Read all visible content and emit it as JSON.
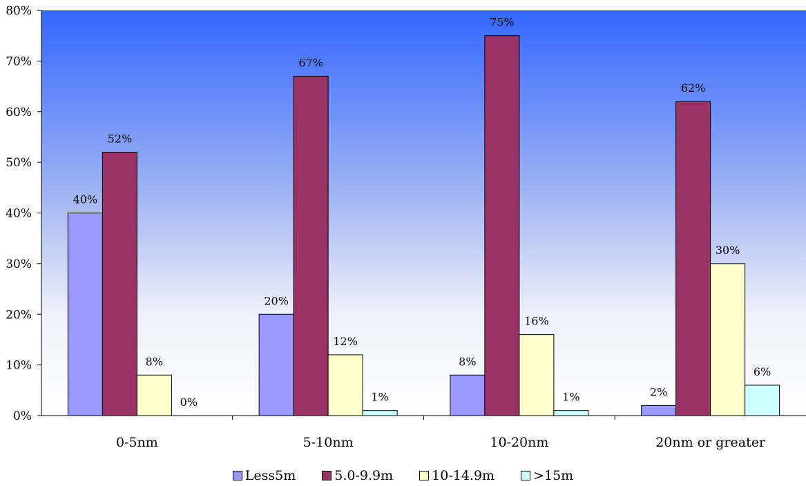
{
  "chart_data": {
    "type": "bar",
    "categories": [
      "0-5nm",
      "5-10nm",
      "10-20nm",
      "20nm or greater"
    ],
    "series": [
      {
        "name": "Less5m",
        "values": [
          40,
          20,
          8,
          2
        ],
        "labels": [
          "40%",
          "20%",
          "8%",
          "2%"
        ],
        "color": "#9999ff"
      },
      {
        "name": "5.0-9.9m",
        "values": [
          52,
          67,
          75,
          62
        ],
        "labels": [
          "52%",
          "67%",
          "75%",
          "62%"
        ],
        "color": "#993366"
      },
      {
        "name": "10-14.9m",
        "values": [
          8,
          12,
          16,
          30
        ],
        "labels": [
          "8%",
          "12%",
          "16%",
          "30%"
        ],
        "color": "#ffffcc"
      },
      {
        "name": ">15m",
        "values": [
          0,
          1,
          1,
          6
        ],
        "labels": [
          "0%",
          "1%",
          "1%",
          "6%"
        ],
        "color": "#ccffff"
      }
    ],
    "y_ticks": [
      "0%",
      "10%",
      "20%",
      "30%",
      "40%",
      "50%",
      "60%",
      "70%",
      "80%"
    ],
    "ylim": [
      0,
      80
    ],
    "xlabel": "",
    "ylabel": "",
    "title": "",
    "legend_position": "bottom",
    "background": "gradient blue-to-white"
  }
}
